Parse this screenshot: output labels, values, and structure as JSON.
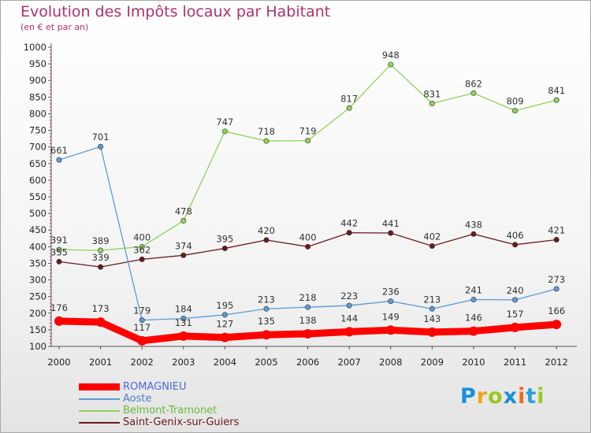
{
  "chart_data": {
    "type": "line",
    "title": "Evolution des Impôts locaux par Habitant",
    "subtitle": "(en € et par an)",
    "xlabel": "",
    "ylabel": "",
    "x": [
      "2000",
      "2001",
      "2002",
      "2003",
      "2004",
      "2005",
      "2006",
      "2007",
      "2008",
      "2009",
      "2010",
      "2011",
      "2012"
    ],
    "ylim": [
      100,
      1000
    ],
    "yticks": [
      "100",
      "150",
      "200",
      "250",
      "300",
      "350",
      "400",
      "450",
      "500",
      "550",
      "600",
      "650",
      "700",
      "750",
      "800",
      "850",
      "900",
      "950",
      "1000"
    ],
    "grid": false,
    "legend_position": "bottom-left",
    "series": [
      {
        "name": "ROMAGNIEU",
        "color": "#ff0000",
        "values": [
          176,
          173,
          117,
          131,
          127,
          135,
          138,
          144,
          149,
          143,
          146,
          157,
          166
        ]
      },
      {
        "name": "Aoste",
        "color": "#5b9bd5",
        "values": [
          661,
          701,
          179,
          184,
          195,
          213,
          218,
          223,
          236,
          213,
          241,
          240,
          273
        ]
      },
      {
        "name": "Belmont-Tramonet",
        "color": "#8fd35a",
        "values": [
          391,
          389,
          400,
          478,
          747,
          718,
          719,
          817,
          948,
          831,
          862,
          809,
          841
        ]
      },
      {
        "name": "Saint-Genix-sur-Guiers",
        "color": "#6b1a1a",
        "values": [
          355,
          339,
          362,
          374,
          395,
          420,
          400,
          442,
          441,
          402,
          438,
          406,
          421
        ]
      }
    ]
  },
  "logo": {
    "letters": [
      "P",
      "r",
      "o",
      "x",
      "i",
      "t",
      "i"
    ],
    "colors": [
      "#1a8fd8",
      "#f2a21b",
      "#9ac81e",
      "#1a8fd8",
      "#f26a1b",
      "#2aa0d8",
      "#9ac81e"
    ]
  }
}
